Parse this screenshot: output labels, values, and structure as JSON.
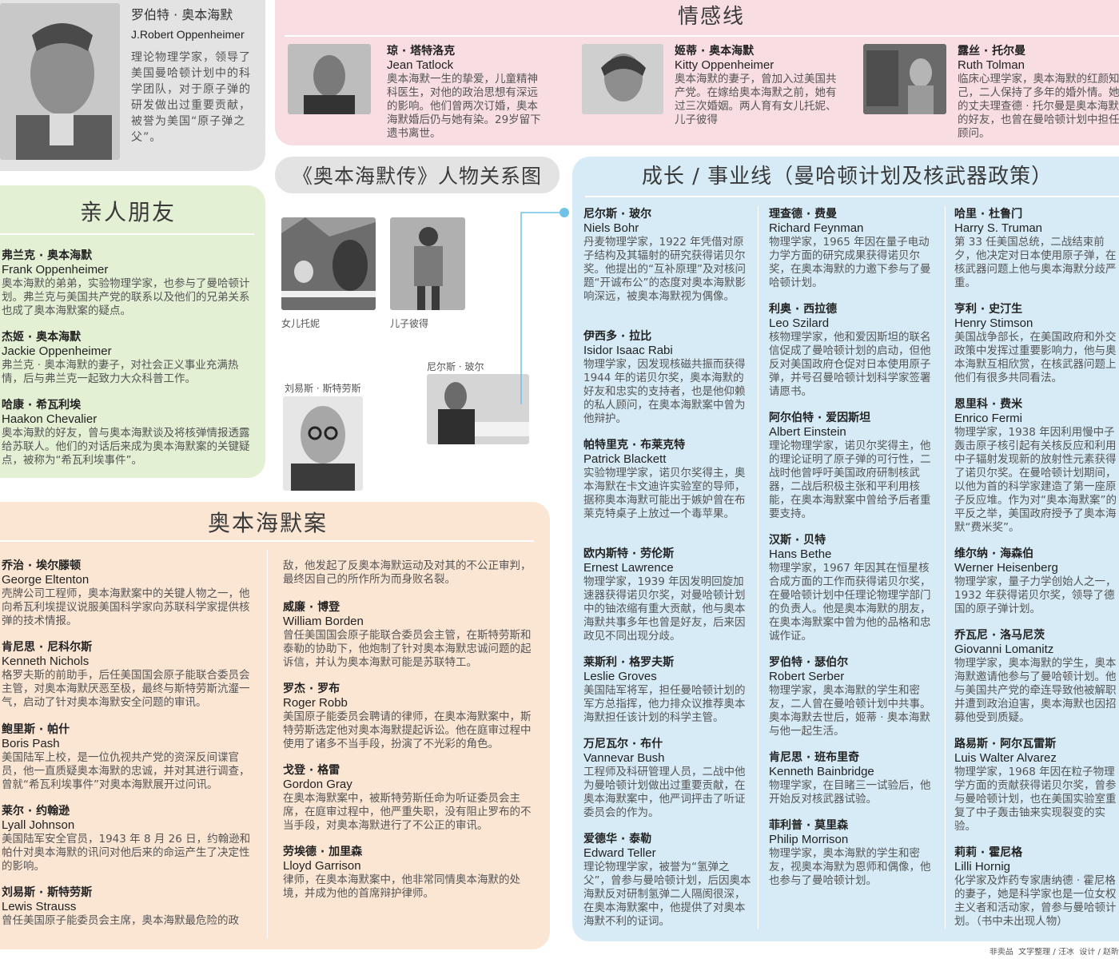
{
  "page_title": "《奥本海默传》人物关系图",
  "main": {
    "name_zh": "罗伯特 · 奥本海默",
    "name_en": "J.Robert Oppenheimer",
    "desc": "理论物理学家，领导了美国曼哈顿计划中的科学团队，对于原子弹的研发做出过重要贡献，被誉为美国“原子弹之父”。"
  },
  "love": {
    "title": "情感线",
    "people": [
      {
        "name_zh": "琼 · 塔特洛克",
        "name_en": "Jean Tatlock",
        "desc": "奥本海默一生的挚爱，儿童精神科医生，对他的政治思想有深远的影响。他们曾两次订婚，奥本海默婚后仍与她有染。29岁留下遗书离世。"
      },
      {
        "name_zh": "姬蒂 · 奥本海默",
        "name_en": "Kitty Oppenheimer",
        "desc": "奥本海默的妻子，曾加入过美国共产党。在嫁给奥本海默之前，她有过三次婚姻。两人育有女儿托妮、儿子彼得"
      },
      {
        "name_zh": "露丝 · 托尔曼",
        "name_en": "Ruth Tolman",
        "desc": "临床心理学家，奥本海默的红颜知己，二人保持了多年的婚外情。她的丈夫理查德 · 托尔曼是奥本海默的好友，也曾在曼哈顿计划中担任顾问。"
      }
    ]
  },
  "family": {
    "title": "亲人朋友",
    "people": [
      {
        "name_zh": "弗兰克 · 奥本海默",
        "name_en": "Frank Oppenheimer",
        "desc": "奥本海默的弟弟，实验物理学家，也参与了曼哈顿计划。弗兰克与美国共产党的联系以及他们的兄弟关系也成了奥本海默案的疑点。"
      },
      {
        "name_zh": "杰姬 · 奥本海默",
        "name_en": "Jackie Oppenheimer",
        "desc": "弗兰克 · 奥本海默的妻子，对社会正义事业充满热情，后与弗兰克一起致力大众科普工作。"
      },
      {
        "name_zh": "哈康 · 希瓦利埃",
        "name_en": "Haakon Chevalier",
        "desc": "奥本海默的好友，曾与奥本海默谈及将核弹情报透露给苏联人。他们的对话后来成为奥本海默案的关键疑点，被称为“希瓦利埃事件”。"
      }
    ]
  },
  "photos": {
    "daughter": "女儿托妮",
    "son": "儿子彼得",
    "strauss": "刘易斯 · 斯特劳斯",
    "bohr": "尼尔斯 · 玻尔"
  },
  "case": {
    "title": "奥本海默案",
    "col1": [
      {
        "name_zh": "乔治 · 埃尔滕顿",
        "name_en": "George Eltenton",
        "desc": "壳牌公司工程师，奥本海默案中的关键人物之一，他向希瓦利埃提议说服美国科学家向苏联科学家提供核弹的技术情报。"
      },
      {
        "name_zh": "肯尼思 · 尼科尔斯",
        "name_en": "Kenneth Nichols",
        "desc": "格罗夫斯的前助手，后任美国国会原子能联合委员会主管，对奥本海默厌恶至极，最终与斯特劳斯沆瀣一气，启动了针对奥本海默安全问题的审讯。"
      },
      {
        "name_zh": "鲍里斯 · 帕什",
        "name_en": "Boris Pash",
        "desc": "美国陆军上校，是一位仇视共产党的资深反间谍官员，他一直质疑奥本海默的忠诚，并对其进行调查，曾就“希瓦利埃事件”对奥本海默展开过问讯。"
      },
      {
        "name_zh": "莱尔 · 约翰逊",
        "name_en": "Lyall Johnson",
        "desc": "美国陆军安全官员，1943 年 8 月 26 日，约翰逊和帕什对奥本海默的讯问对他后来的命运产生了决定性的影响。"
      },
      {
        "name_zh": "刘易斯 · 斯特劳斯",
        "name_en": "Lewis Strauss",
        "desc": "曾任美国原子能委员会主席，奥本海默最危险的政"
      }
    ],
    "col2_lead": "敌，他发起了反奥本海默运动及对其的不公正审判，最终因自己的所作所为而身败名裂。",
    "col2": [
      {
        "name_zh": "威廉 · 博登",
        "name_en": "William Borden",
        "desc": "曾任美国国会原子能联合委员会主管，在斯特劳斯和泰勒的协助下，他炮制了针对奥本海默忠诚问题的起诉信，并认为奥本海默可能是苏联特工。"
      },
      {
        "name_zh": "罗杰 · 罗布",
        "name_en": "Roger Robb",
        "desc": "美国原子能委员会聘请的律师，在奥本海默案中，斯特劳斯选定他对奥本海默提起诉讼。他在庭审过程中使用了诸多不当手段，扮演了不光彩的角色。"
      },
      {
        "name_zh": "戈登 · 格雷",
        "name_en": "Gordon Gray",
        "desc": "在奥本海默案中，被斯特劳斯任命为听证委员会主席，在庭审过程中，他严重失职，没有阻止罗布的不当手段，对奥本海默进行了不公正的审讯。"
      },
      {
        "name_zh": "劳埃德 · 加里森",
        "name_en": "Lloyd Garrison",
        "desc": "律师，在奥本海默案中，他非常同情奥本海默的处境，并成为他的首席辩护律师。"
      }
    ]
  },
  "career": {
    "title": "成长 / 事业线（曼哈顿计划及核武器政策）",
    "col1": [
      {
        "name_zh": "尼尔斯 · 玻尔",
        "name_en": "Niels Bohr",
        "desc": "丹麦物理学家，1922 年凭借对原子结构及其辐射的研究获得诺贝尔奖。他提出的“互补原理”及对核问题“开诚布公”的态度对奥本海默影响深远，被奥本海默视为偶像。"
      },
      {
        "name_zh": "伊西多 · 拉比",
        "name_en": "Isidor Isaac Rabi",
        "desc": "物理学家，因发现核磁共振而获得 1944 年的诺贝尔奖，奥本海默的好友和忠实的支持者，也是他仰赖的私人顾问，在奥本海默案中曾为他辩护。"
      },
      {
        "name_zh": "帕特里克 · 布莱克特",
        "name_en": "Patrick Blackett",
        "desc": "实验物理学家，诺贝尔奖得主，奥本海默在卡文迪许实验室的导师，据称奥本海默可能出于嫉妒曾在布莱克特桌子上放过一个毒苹果。"
      },
      {
        "name_zh": "欧内斯特 · 劳伦斯",
        "name_en": "Ernest Lawrence",
        "desc": "物理学家，1939 年因发明回旋加速器获得诺贝尔奖，对曼哈顿计划中的铀浓缩有重大贡献，他与奥本海默共事多年也曾是好友，后来因政见不同出现分歧。"
      },
      {
        "name_zh": "莱斯利 · 格罗夫斯",
        "name_en": "Leslie Groves",
        "desc": "美国陆军将军，担任曼哈顿计划的军方总指挥，他力排众议推荐奥本海默担任该计划的科学主管。"
      },
      {
        "name_zh": "万尼瓦尔 · 布什",
        "name_en": "Vannevar Bush",
        "desc": "工程师及科研管理人员，二战中他为曼哈顿计划做出过重要贡献，在奥本海默案中，他严词抨击了听证委员会的作为。"
      },
      {
        "name_zh": "爱德华 · 泰勒",
        "name_en": "Edward Teller",
        "desc": "理论物理学家，被誉为“氢弹之父”，曾参与曼哈顿计划，后因奥本海默反对研制氢弹二人隔阂很深，在奥本海默案中，他提供了对奥本海默不利的证词。"
      }
    ],
    "col2": [
      {
        "name_zh": "理查德 · 费曼",
        "name_en": "Richard Feynman",
        "desc": "物理学家，1965 年因在量子电动力学方面的研究成果获得诺贝尔奖，在奥本海默的力邀下参与了曼哈顿计划。"
      },
      {
        "name_zh": "利奥 · 西拉德",
        "name_en": "Leo Szilard",
        "desc": "核物理学家，他和爱因斯坦的联名信促成了曼哈顿计划的启动，但他反对美国政府仓促对日本使用原子弹，并号召曼哈顿计划科学家签署请愿书。"
      },
      {
        "name_zh": "阿尔伯特 · 爱因斯坦",
        "name_en": "Albert Einstein",
        "desc": "理论物理学家，诺贝尔奖得主，他的理论证明了原子弹的可行性，二战时他曾呼吁美国政府研制核武器，二战后积极主张和平利用核能，在奥本海默案中曾给予后者重要支持。"
      },
      {
        "name_zh": "汉斯 · 贝特",
        "name_en": "Hans Bethe",
        "desc": "物理学家，1967 年因其在恒星核合成方面的工作而获得诺贝尔奖，在曼哈顿计划中任理论物理学部门的负责人。他是奥本海默的朋友，在奥本海默案中曾为他的品格和忠诚作证。"
      },
      {
        "name_zh": "罗伯特 · 瑟伯尔",
        "name_en": "Robert Serber",
        "desc": "物理学家，奥本海默的学生和密友，二人曾在曼哈顿计划中共事。奥本海默去世后，姬蒂 · 奥本海默与他一起生活。"
      },
      {
        "name_zh": "肯尼思 · 班布里奇",
        "name_en": "Kenneth Bainbridge",
        "desc": "物理学家，在目睹三一试验后，他开始反对核武器试验。"
      },
      {
        "name_zh": "菲利普 · 莫里森",
        "name_en": "Philip Morrison",
        "desc": "物理学家，奥本海默的学生和密友，视奥本海默为恩师和偶像，他也参与了曼哈顿计划。"
      }
    ],
    "col3": [
      {
        "name_zh": "哈里 · 杜鲁门",
        "name_en": "Harry S. Truman",
        "desc": "第 33 任美国总统，二战结束前夕，他决定对日本使用原子弹，在核武器问题上他与奥本海默分歧严重。"
      },
      {
        "name_zh": "亨利 · 史汀生",
        "name_en": "Henry Stimson",
        "desc": "美国战争部长，在美国政府和外交政策中发挥过重要影响力，他与奥本海默互相欣赏，在核武器问题上他们有很多共同看法。"
      },
      {
        "name_zh": "恩里科 · 费米",
        "name_en": "Enrico Fermi",
        "desc": "物理学家，1938 年因利用慢中子轰击原子核引起有关核反应和利用中子辐射发现新的放射性元素获得了诺贝尔奖。在曼哈顿计划期间，以他为首的科学家建造了第一座原子反应堆。作为对“奥本海默案”的平反之举，美国政府授予了奥本海默“费米奖”。"
      },
      {
        "name_zh": "维尔纳 · 海森伯",
        "name_en": "Werner Heisenberg",
        "desc": "物理学家，量子力学创始人之一，1932 年获得诺贝尔奖，领导了德国的原子弹计划。"
      },
      {
        "name_zh": "乔瓦尼 · 洛马尼茨",
        "name_en": "Giovanni Lomanitz",
        "desc": "物理学家，奥本海默的学生，奥本海默邀请他参与了曼哈顿计划。他与美国共产党的牵连导致他被解职并遭到政治迫害，奥本海默也因招募他受到质疑。"
      },
      {
        "name_zh": "路易斯 · 阿尔瓦雷斯",
        "name_en": "Luis Walter Alvarez",
        "desc": "物理学家，1968 年因在粒子物理学方面的贡献获得诺贝尔奖，曾参与曼哈顿计划，也在美国实验室重复了中子轰击铀来实现裂变的实验。"
      },
      {
        "name_zh": "莉莉 · 霍尼格",
        "name_en": "Lilli Hornig",
        "desc": "化学家及炸药专家唐纳德 · 霍尼格的妻子，她是科学家也是一位女权主义者和活动家，曾参与曼哈顿计划。（书中未出现人物）"
      }
    ]
  },
  "credits": "非卖品  文字整理 / 汪冰  设计 / 赵昕",
  "colors": {
    "pink": "#f8dde3",
    "gray": "#e3e3e3",
    "green": "#e3f0d4",
    "peach": "#fbe6d4",
    "blue": "#d6ebf6",
    "connector": "#6fc3e6"
  }
}
